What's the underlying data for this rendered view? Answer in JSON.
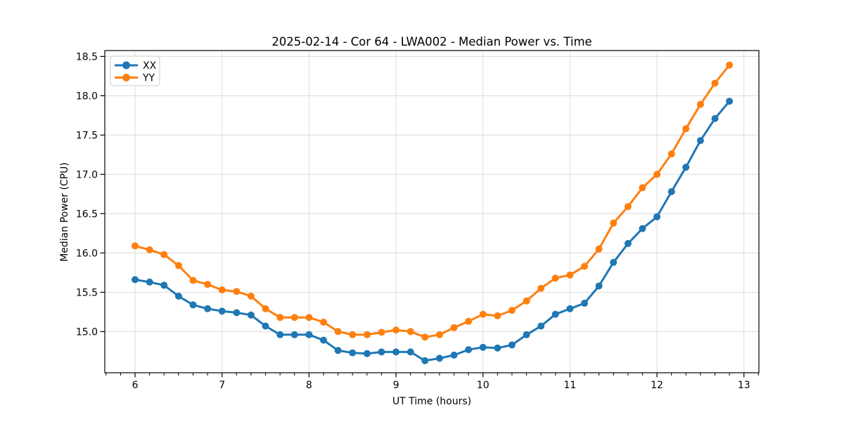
{
  "figure": {
    "title": "2025-02-14 - Cor 64 - LWA002 - Median Power vs. Time"
  },
  "chart_data": {
    "type": "line",
    "title": "2025-02-14 - Cor 64 - LWA002 - Median Power vs. Time",
    "xlabel": "UT Time (hours)",
    "ylabel": "Median Power (CPU)",
    "x": [
      6.0,
      6.167,
      6.333,
      6.5,
      6.667,
      6.833,
      7.0,
      7.167,
      7.333,
      7.5,
      7.667,
      7.833,
      8.0,
      8.167,
      8.333,
      8.5,
      8.667,
      8.833,
      9.0,
      9.167,
      9.333,
      9.5,
      9.667,
      9.833,
      10.0,
      10.167,
      10.333,
      10.5,
      10.667,
      10.833,
      11.0,
      11.167,
      11.333,
      11.5,
      11.667,
      11.833,
      12.0,
      12.167,
      12.333,
      12.5,
      12.667,
      12.833
    ],
    "series": [
      {
        "name": "XX",
        "color": "#1f77b4",
        "values": [
          15.66,
          15.63,
          15.59,
          15.45,
          15.34,
          15.29,
          15.26,
          15.24,
          15.21,
          15.07,
          14.96,
          14.96,
          14.96,
          14.89,
          14.76,
          14.73,
          14.72,
          14.74,
          14.74,
          14.74,
          14.63,
          14.66,
          14.7,
          14.77,
          14.8,
          14.79,
          14.83,
          14.96,
          15.07,
          15.22,
          15.29,
          15.36,
          15.58,
          15.88,
          16.12,
          16.31,
          16.46,
          16.78,
          17.09,
          17.43,
          17.71,
          17.93
        ]
      },
      {
        "name": "YY",
        "color": "#ff7f0e",
        "values": [
          16.09,
          16.04,
          15.98,
          15.84,
          15.65,
          15.6,
          15.53,
          15.51,
          15.45,
          15.29,
          15.18,
          15.18,
          15.18,
          15.12,
          15.0,
          14.96,
          14.96,
          14.99,
          15.02,
          15.0,
          14.93,
          14.96,
          15.05,
          15.13,
          15.22,
          15.2,
          15.27,
          15.39,
          15.55,
          15.68,
          15.72,
          15.83,
          16.05,
          16.38,
          16.59,
          16.83,
          17.0,
          17.26,
          17.58,
          17.89,
          18.16,
          18.39
        ]
      }
    ],
    "x_ticks": [
      "6",
      "7",
      "8",
      "9",
      "10",
      "11",
      "12",
      "13"
    ],
    "y_ticks": [
      "15.0",
      "15.5",
      "16.0",
      "16.5",
      "17.0",
      "17.5",
      "18.0",
      "18.5"
    ],
    "xlim": [
      5.652,
      13.172
    ],
    "ylim": [
      14.476,
      18.575
    ],
    "x_minor_interval_hours": 0.166667,
    "grid": true,
    "legend": {
      "position": "upper-left",
      "labels": [
        "XX",
        "YY"
      ]
    },
    "colors": {
      "grid": "#dcdcdc",
      "spine": "#000000",
      "tick": "#000000",
      "text": "#000000",
      "legend_border": "#cccccc",
      "background": "#ffffff"
    }
  }
}
